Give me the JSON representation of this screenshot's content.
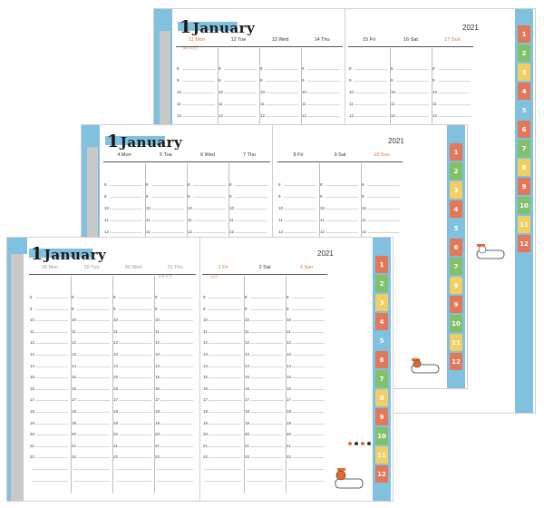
{
  "colors": {
    "accent_blue": "#7fc1de",
    "orange": "#e46a2a",
    "green": "#82c06a",
    "yellow": "#f1cf62",
    "red": "#e3775a"
  },
  "sheets": [
    {
      "name": "sheet-back",
      "month_number": "1",
      "month_name": "January",
      "year": "2021",
      "left_days": [
        {
          "label": "11  Mon",
          "style": "orange"
        },
        {
          "label": "12  Tue",
          "style": "normal"
        },
        {
          "label": "13  Wed",
          "style": "normal"
        },
        {
          "label": "14  Thu",
          "style": "normal"
        }
      ],
      "right_days": [
        {
          "label": "15  Fri",
          "style": "normal"
        },
        {
          "label": "16  Sat",
          "style": "normal"
        },
        {
          "label": "17  Sun",
          "style": "orange"
        }
      ],
      "note": "成人の日",
      "hours": [
        "8",
        "9",
        "10",
        "11",
        "12"
      ]
    },
    {
      "name": "sheet-middle",
      "month_number": "1",
      "month_name": "January",
      "year": "2021",
      "left_days": [
        {
          "label": "4  Mon",
          "style": "normal"
        },
        {
          "label": "5  Tue",
          "style": "normal"
        },
        {
          "label": "6  Wed",
          "style": "normal"
        },
        {
          "label": "7  Thu",
          "style": "normal"
        }
      ],
      "right_days": [
        {
          "label": "8  Fri",
          "style": "normal"
        },
        {
          "label": "9  Sat",
          "style": "normal"
        },
        {
          "label": "10  Sun",
          "style": "orange"
        }
      ],
      "hours": [
        "8",
        "9",
        "10",
        "11",
        "12"
      ]
    },
    {
      "name": "sheet-front",
      "month_number": "1",
      "month_name": "January",
      "year": "2021",
      "left_days": [
        {
          "label": "28  Mon",
          "style": "gray"
        },
        {
          "label": "29  Tue",
          "style": "gray"
        },
        {
          "label": "30  Wed",
          "style": "gray"
        },
        {
          "label": "31  Thu",
          "style": "gray"
        }
      ],
      "right_days": [
        {
          "label": "1  Fri",
          "style": "orange"
        },
        {
          "label": "2  Sat",
          "style": "normal"
        },
        {
          "label": "3  Sun",
          "style": "orange"
        }
      ],
      "note_left": "大みそか",
      "note_right": "元日",
      "hours": [
        "8",
        "9",
        "10",
        "11",
        "12",
        "13",
        "14",
        "15",
        "16",
        "17",
        "18",
        "19",
        "20",
        "21",
        "22"
      ]
    }
  ],
  "month_tabs": [
    "1",
    "2",
    "3",
    "4",
    "5",
    "6",
    "7",
    "8",
    "9",
    "10",
    "11",
    "12"
  ]
}
